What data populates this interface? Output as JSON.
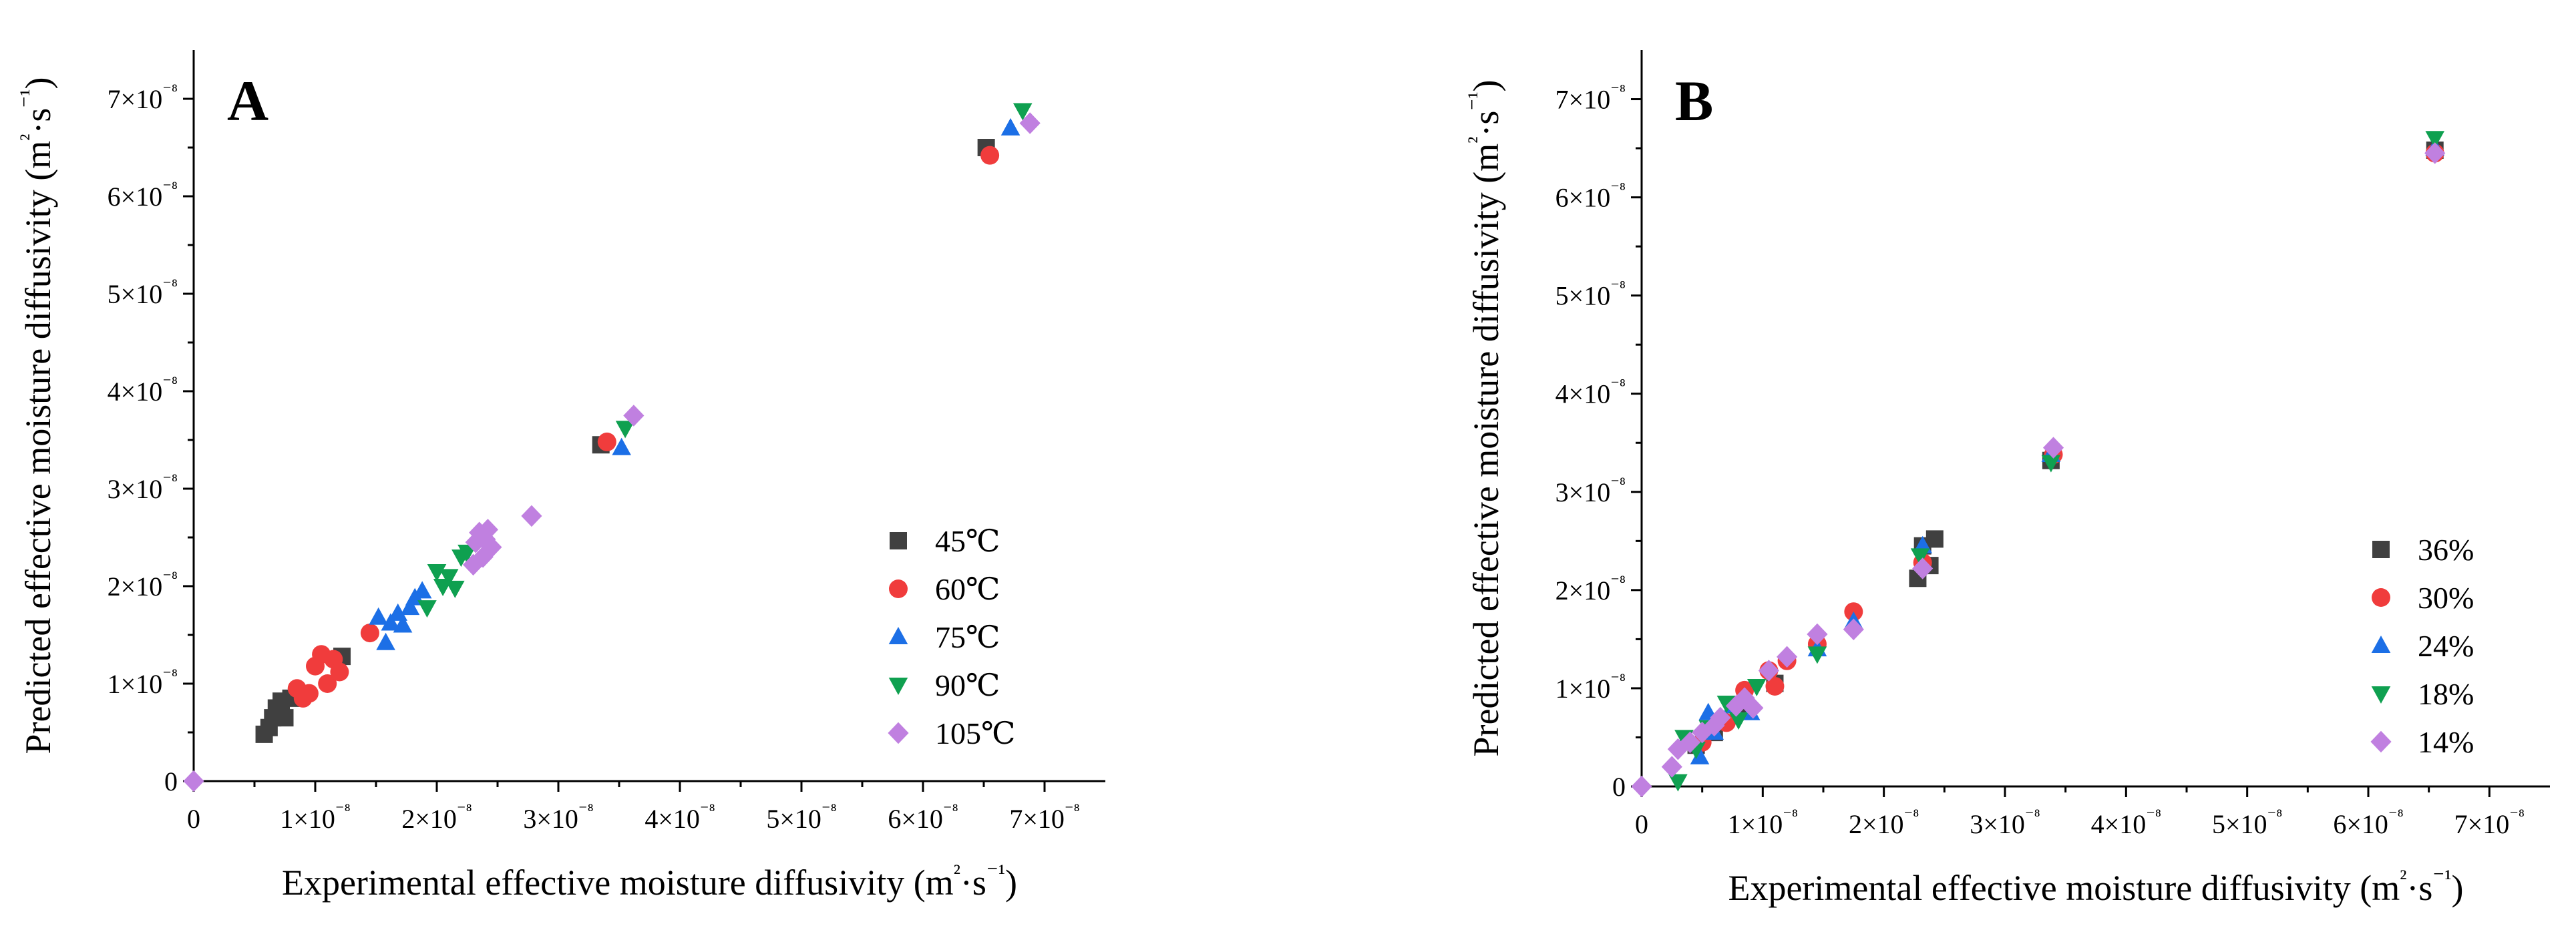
{
  "chart_data": [
    {
      "type": "scatter",
      "panel_label": "A",
      "xlabel": "Experimental effective moisture diffusivity (m²·s⁻¹)",
      "ylabel": "Predicted effective moisture diffusivity (m²·s⁻¹)",
      "xlim": [
        0,
        7.5e-08
      ],
      "ylim": [
        0,
        7.5e-08
      ],
      "x_ticks": [
        "0",
        "1×10⁻⁸",
        "2×10⁻⁸",
        "3×10⁻⁸",
        "4×10⁻⁸",
        "5×10⁻⁸",
        "6×10⁻⁸",
        "7×10⁻⁸"
      ],
      "y_ticks": [
        "0",
        "1×10⁻⁸",
        "2×10⁻⁸",
        "3×10⁻⁸",
        "4×10⁻⁸",
        "5×10⁻⁸",
        "6×10⁻⁸",
        "7×10⁻⁸"
      ],
      "legend_position": "bottom-right",
      "series": [
        {
          "name": "45℃",
          "marker": "square",
          "color": "#404040",
          "x": [
            0.58,
            0.62,
            0.65,
            0.68,
            0.72,
            0.75,
            0.8,
            1.22,
            3.35,
            6.52
          ],
          "y": [
            0.48,
            0.55,
            0.65,
            0.75,
            0.82,
            0.65,
            0.85,
            1.28,
            3.45,
            6.5
          ]
        },
        {
          "name": "60℃",
          "marker": "circle",
          "color": "#f03c3c",
          "x": [
            0.85,
            0.9,
            0.95,
            1.0,
            1.05,
            1.1,
            1.15,
            1.2,
            1.45,
            3.4,
            6.55
          ],
          "y": [
            0.95,
            0.85,
            0.9,
            1.18,
            1.3,
            1.0,
            1.25,
            1.12,
            1.52,
            3.48,
            6.42
          ]
        },
        {
          "name": "75℃",
          "marker": "triangle-up",
          "color": "#1c6fe6",
          "x": [
            1.52,
            1.58,
            1.62,
            1.68,
            1.72,
            1.78,
            1.82,
            1.88,
            3.52,
            6.72
          ],
          "y": [
            1.68,
            1.42,
            1.62,
            1.72,
            1.6,
            1.78,
            1.88,
            1.95,
            3.42,
            6.7
          ]
        },
        {
          "name": "90℃",
          "marker": "triangle-down",
          "color": "#0fa050",
          "x": [
            1.92,
            2.0,
            2.05,
            2.1,
            2.15,
            2.2,
            2.25,
            2.3,
            3.55,
            6.82
          ],
          "y": [
            1.78,
            2.15,
            2.0,
            2.1,
            1.98,
            2.3,
            2.35,
            2.22,
            3.62,
            6.88
          ]
        },
        {
          "name": "105℃",
          "marker": "diamond",
          "color": "#c080e0",
          "x": [
            0.0,
            2.3,
            2.32,
            2.35,
            2.38,
            2.4,
            2.42,
            2.45,
            2.78,
            3.62,
            6.88
          ],
          "y": [
            0.0,
            2.22,
            2.45,
            2.55,
            2.3,
            2.48,
            2.58,
            2.4,
            2.72,
            3.75,
            6.75
          ]
        }
      ]
    },
    {
      "type": "scatter",
      "panel_label": "B",
      "xlabel": "Experimental effective moisture diffusivity (m²·s⁻¹)",
      "ylabel": "Predicted effective moisture diffusivity (m²·s⁻¹)",
      "xlim": [
        0,
        7.5e-08
      ],
      "ylim": [
        0,
        7.5e-08
      ],
      "x_ticks": [
        "0",
        "1×10⁻⁸",
        "2×10⁻⁸",
        "3×10⁻⁸",
        "4×10⁻⁸",
        "5×10⁻⁸",
        "6×10⁻⁸",
        "7×10⁻⁸"
      ],
      "y_ticks": [
        "0",
        "1×10⁻⁸",
        "2×10⁻⁸",
        "3×10⁻⁸",
        "4×10⁻⁸",
        "5×10⁻⁸",
        "6×10⁻⁸",
        "7×10⁻⁸"
      ],
      "legend_position": "bottom-right",
      "series": [
        {
          "name": "36%",
          "marker": "square",
          "color": "#404040",
          "x": [
            0.45,
            0.6,
            0.85,
            1.1,
            2.28,
            2.32,
            2.38,
            2.42,
            3.38,
            6.55
          ],
          "y": [
            0.42,
            0.55,
            0.82,
            1.05,
            2.12,
            2.45,
            2.25,
            2.52,
            3.32,
            6.48
          ]
        },
        {
          "name": "30%",
          "marker": "circle",
          "color": "#f03c3c",
          "x": [
            0.5,
            0.7,
            0.85,
            1.05,
            1.1,
            1.2,
            1.45,
            1.75,
            2.32,
            3.4,
            6.55
          ],
          "y": [
            0.45,
            0.65,
            0.98,
            1.18,
            1.02,
            1.28,
            1.45,
            1.78,
            2.28,
            3.38,
            6.45
          ]
        },
        {
          "name": "24%",
          "marker": "triangle-up",
          "color": "#1c6fe6",
          "x": [
            0.35,
            0.48,
            0.55,
            0.6,
            0.75,
            0.9,
            1.45,
            1.75,
            2.32,
            3.38,
            6.55
          ],
          "y": [
            0.45,
            0.3,
            0.75,
            0.55,
            0.82,
            0.75,
            1.4,
            1.68,
            2.45,
            3.38,
            6.5
          ]
        },
        {
          "name": "18%",
          "marker": "triangle-down",
          "color": "#0fa050",
          "x": [
            0.3,
            0.35,
            0.45,
            0.55,
            0.7,
            0.8,
            0.95,
            1.45,
            2.3,
            3.38,
            6.55
          ],
          "y": [
            0.05,
            0.5,
            0.38,
            0.6,
            0.85,
            0.68,
            1.02,
            1.35,
            2.35,
            3.3,
            6.6
          ]
        },
        {
          "name": "14%",
          "marker": "diamond",
          "color": "#c080e0",
          "x": [
            0.0,
            0.25,
            0.3,
            0.4,
            0.5,
            0.6,
            0.65,
            0.78,
            0.85,
            0.92,
            1.05,
            1.2,
            1.45,
            1.75,
            2.32,
            3.4,
            6.55
          ],
          "y": [
            0.0,
            0.2,
            0.38,
            0.45,
            0.55,
            0.62,
            0.7,
            0.82,
            0.9,
            0.8,
            1.18,
            1.32,
            1.55,
            1.6,
            2.22,
            3.45,
            6.45
          ]
        }
      ]
    }
  ]
}
